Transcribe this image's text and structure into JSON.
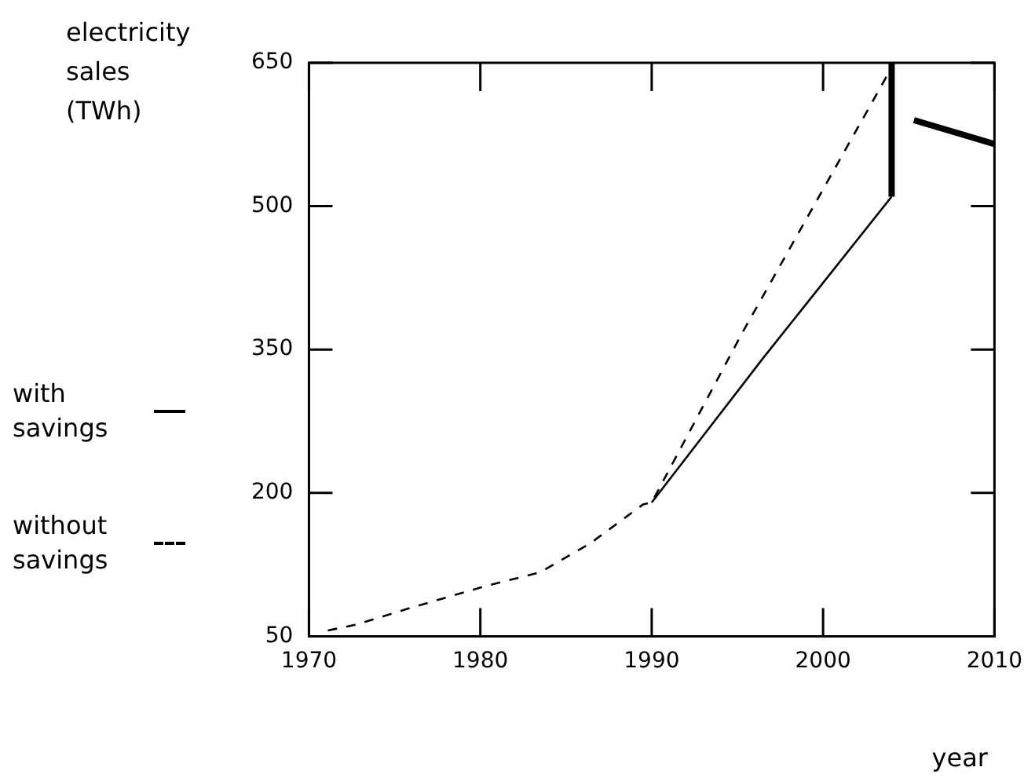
{
  "chart_data": {
    "type": "line",
    "ylabel": "electricity sales (TWh)",
    "xlabel": "year",
    "xlim": [
      1970,
      2010
    ],
    "xticks": [
      1970,
      1980,
      1990,
      2000,
      2010
    ],
    "ylim": [
      50,
      650
    ],
    "yticks": [
      50,
      200,
      350,
      500,
      650
    ],
    "legend": "left",
    "marker": "none",
    "series": [
      {
        "name": "with savings",
        "color": "#000000",
        "line_style": "solid",
        "x": [
          1990,
          1996.5,
          2004
        ],
        "values": [
          190,
          341,
          510
        ]
      },
      {
        "name": "without savings",
        "color": "#000000",
        "line_style": "dashed",
        "x": [
          1971.1,
          1972.7,
          1975.8,
          1980.2,
          1983.5,
          1986.4,
          1989.5,
          1990,
          1995.3,
          2004
        ],
        "values": [
          56,
          62,
          79,
          102,
          117,
          147,
          188,
          190,
          368,
          645
        ]
      },
      {
        "color": "#000000",
        "line_style": "solid",
        "x": [
          2004,
          2004
        ],
        "values": [
          510,
          650
        ]
      },
      {
        "color": "#000000",
        "line_style": "solid",
        "x": [
          2005.3,
          2010
        ],
        "values": [
          590,
          565
        ]
      }
    ]
  }
}
